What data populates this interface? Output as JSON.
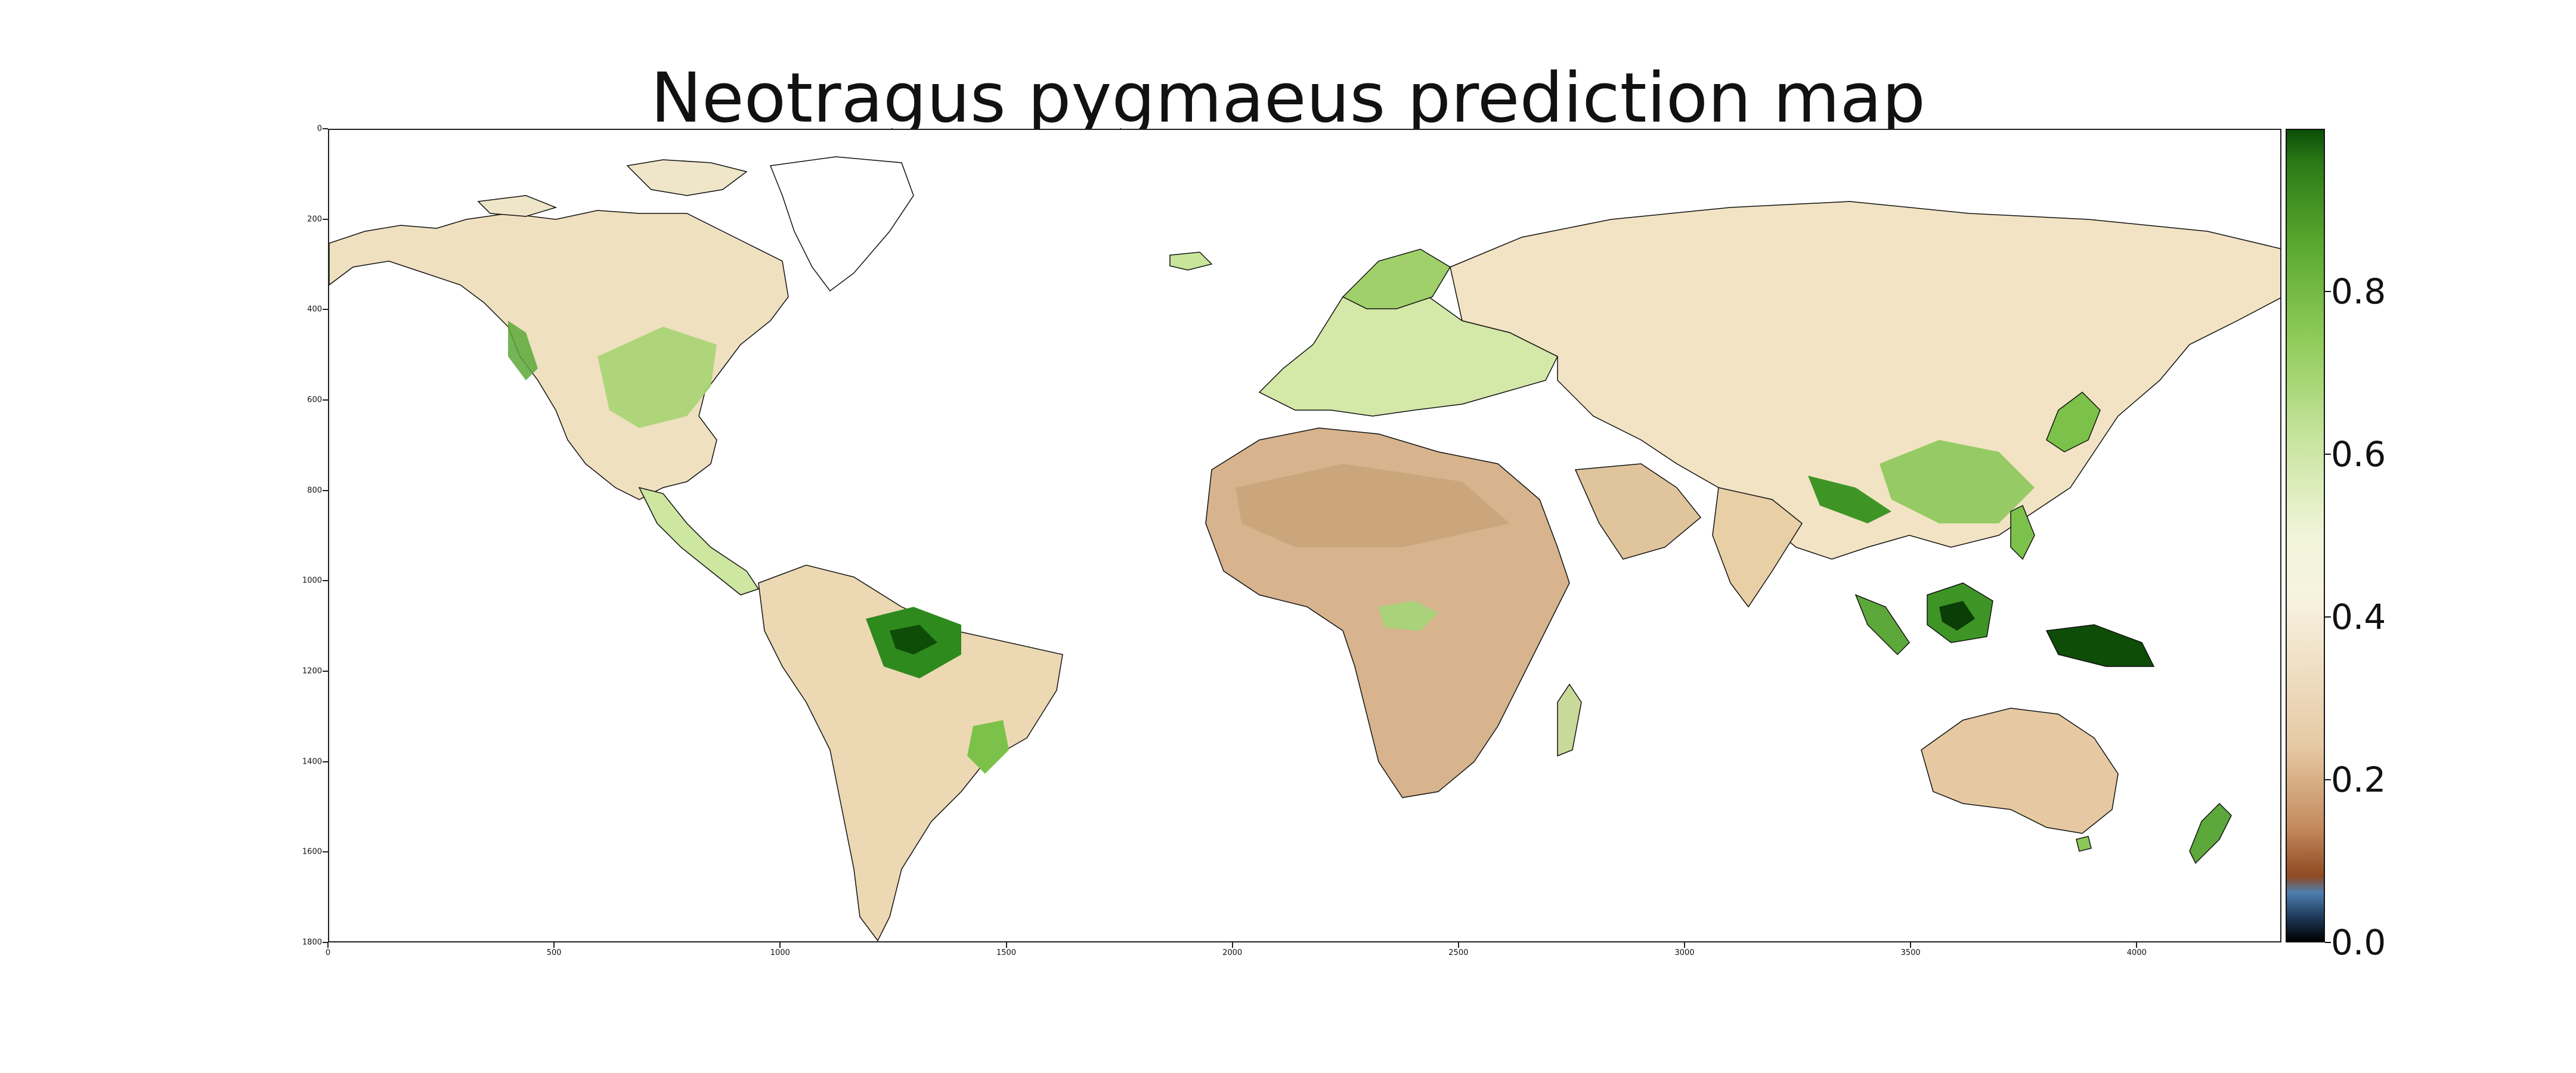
{
  "title": "Neotragus pygmaeus prediction map",
  "axes": {
    "y_ticks": [
      "0",
      "200",
      "400",
      "600",
      "800",
      "1000",
      "1200",
      "1400",
      "1600",
      "1800"
    ],
    "x_ticks": [
      "0",
      "500",
      "1000",
      "1500",
      "2000",
      "2500",
      "3000",
      "3500",
      "4000"
    ],
    "x_range": [
      0,
      4320
    ],
    "y_range": [
      0,
      1800
    ]
  },
  "colorbar": {
    "ticks": [
      "0.0",
      "0.2",
      "0.4",
      "0.6",
      "0.8"
    ],
    "range": [
      0.0,
      1.0
    ],
    "colormap": "brown-cream-green"
  },
  "colors": {
    "desert": "#d7b48e",
    "arid": "#e9d4b0",
    "temperate": "#f2e6c8",
    "forest": "#9fd06a",
    "rainforest": "#2f8a1e",
    "hotspot": "#0b3d06"
  }
}
